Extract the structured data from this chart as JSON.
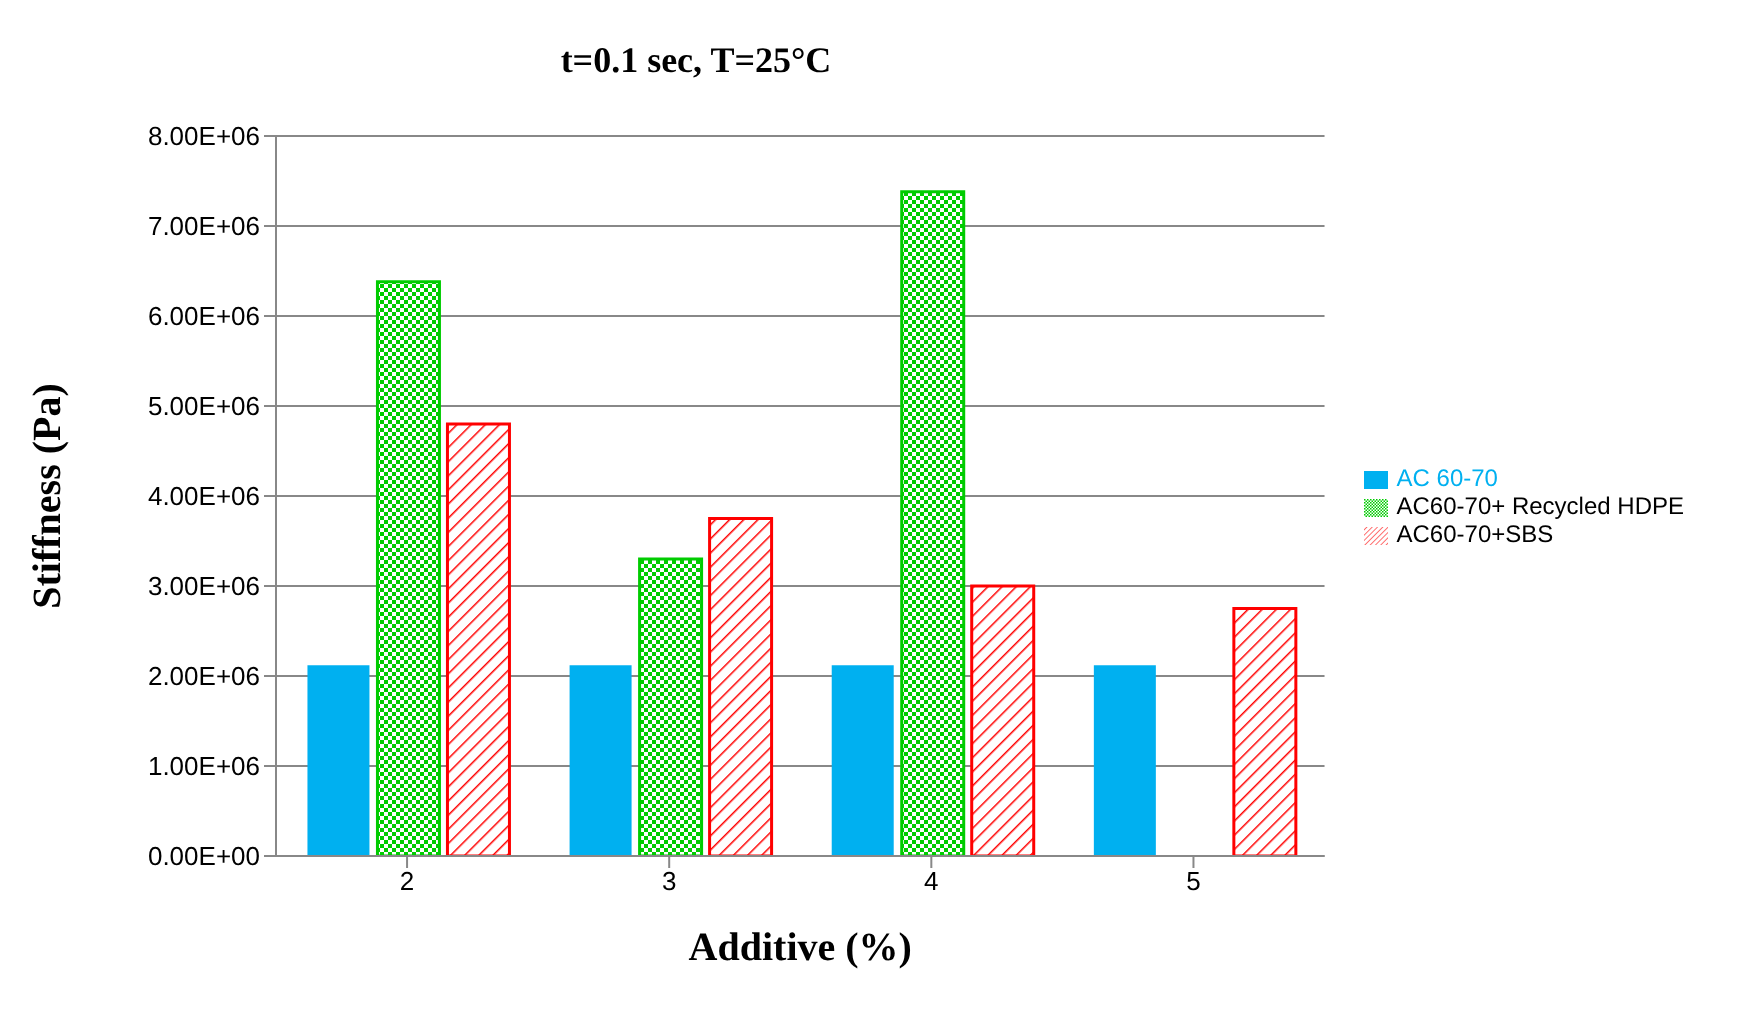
{
  "chart_data": {
    "type": "bar",
    "title": "t=0.1 sec, T=25°C",
    "xlabel": "Additive (%)",
    "ylabel": "Stiffness (Pa)",
    "categories": [
      "2",
      "3",
      "4",
      "5"
    ],
    "series": [
      {
        "name": "AC 60-70",
        "color": "#00b0f0",
        "values": [
          2120000,
          2120000,
          2120000,
          2120000
        ]
      },
      {
        "name": "AC60-70+ Recycled HDPE",
        "color": "#00cc00",
        "values": [
          6380000,
          3300000,
          7380000,
          null
        ]
      },
      {
        "name": "AC60-70+SBS",
        "color": "#ff0000",
        "values": [
          4800000,
          3750000,
          3000000,
          2750000
        ]
      }
    ],
    "ylim": [
      0,
      8000000
    ],
    "yticks": [
      {
        "value": 0,
        "label": "0.00E+00"
      },
      {
        "value": 1000000,
        "label": "1.00E+06"
      },
      {
        "value": 2000000,
        "label": "2.00E+06"
      },
      {
        "value": 3000000,
        "label": "3.00E+06"
      },
      {
        "value": 4000000,
        "label": "4.00E+06"
      },
      {
        "value": 5000000,
        "label": "5.00E+06"
      },
      {
        "value": 6000000,
        "label": "6.00E+06"
      },
      {
        "value": 7000000,
        "label": "7.00E+06"
      },
      {
        "value": 8000000,
        "label": "8.00E+06"
      }
    ],
    "grid": "y",
    "legend": "right"
  }
}
